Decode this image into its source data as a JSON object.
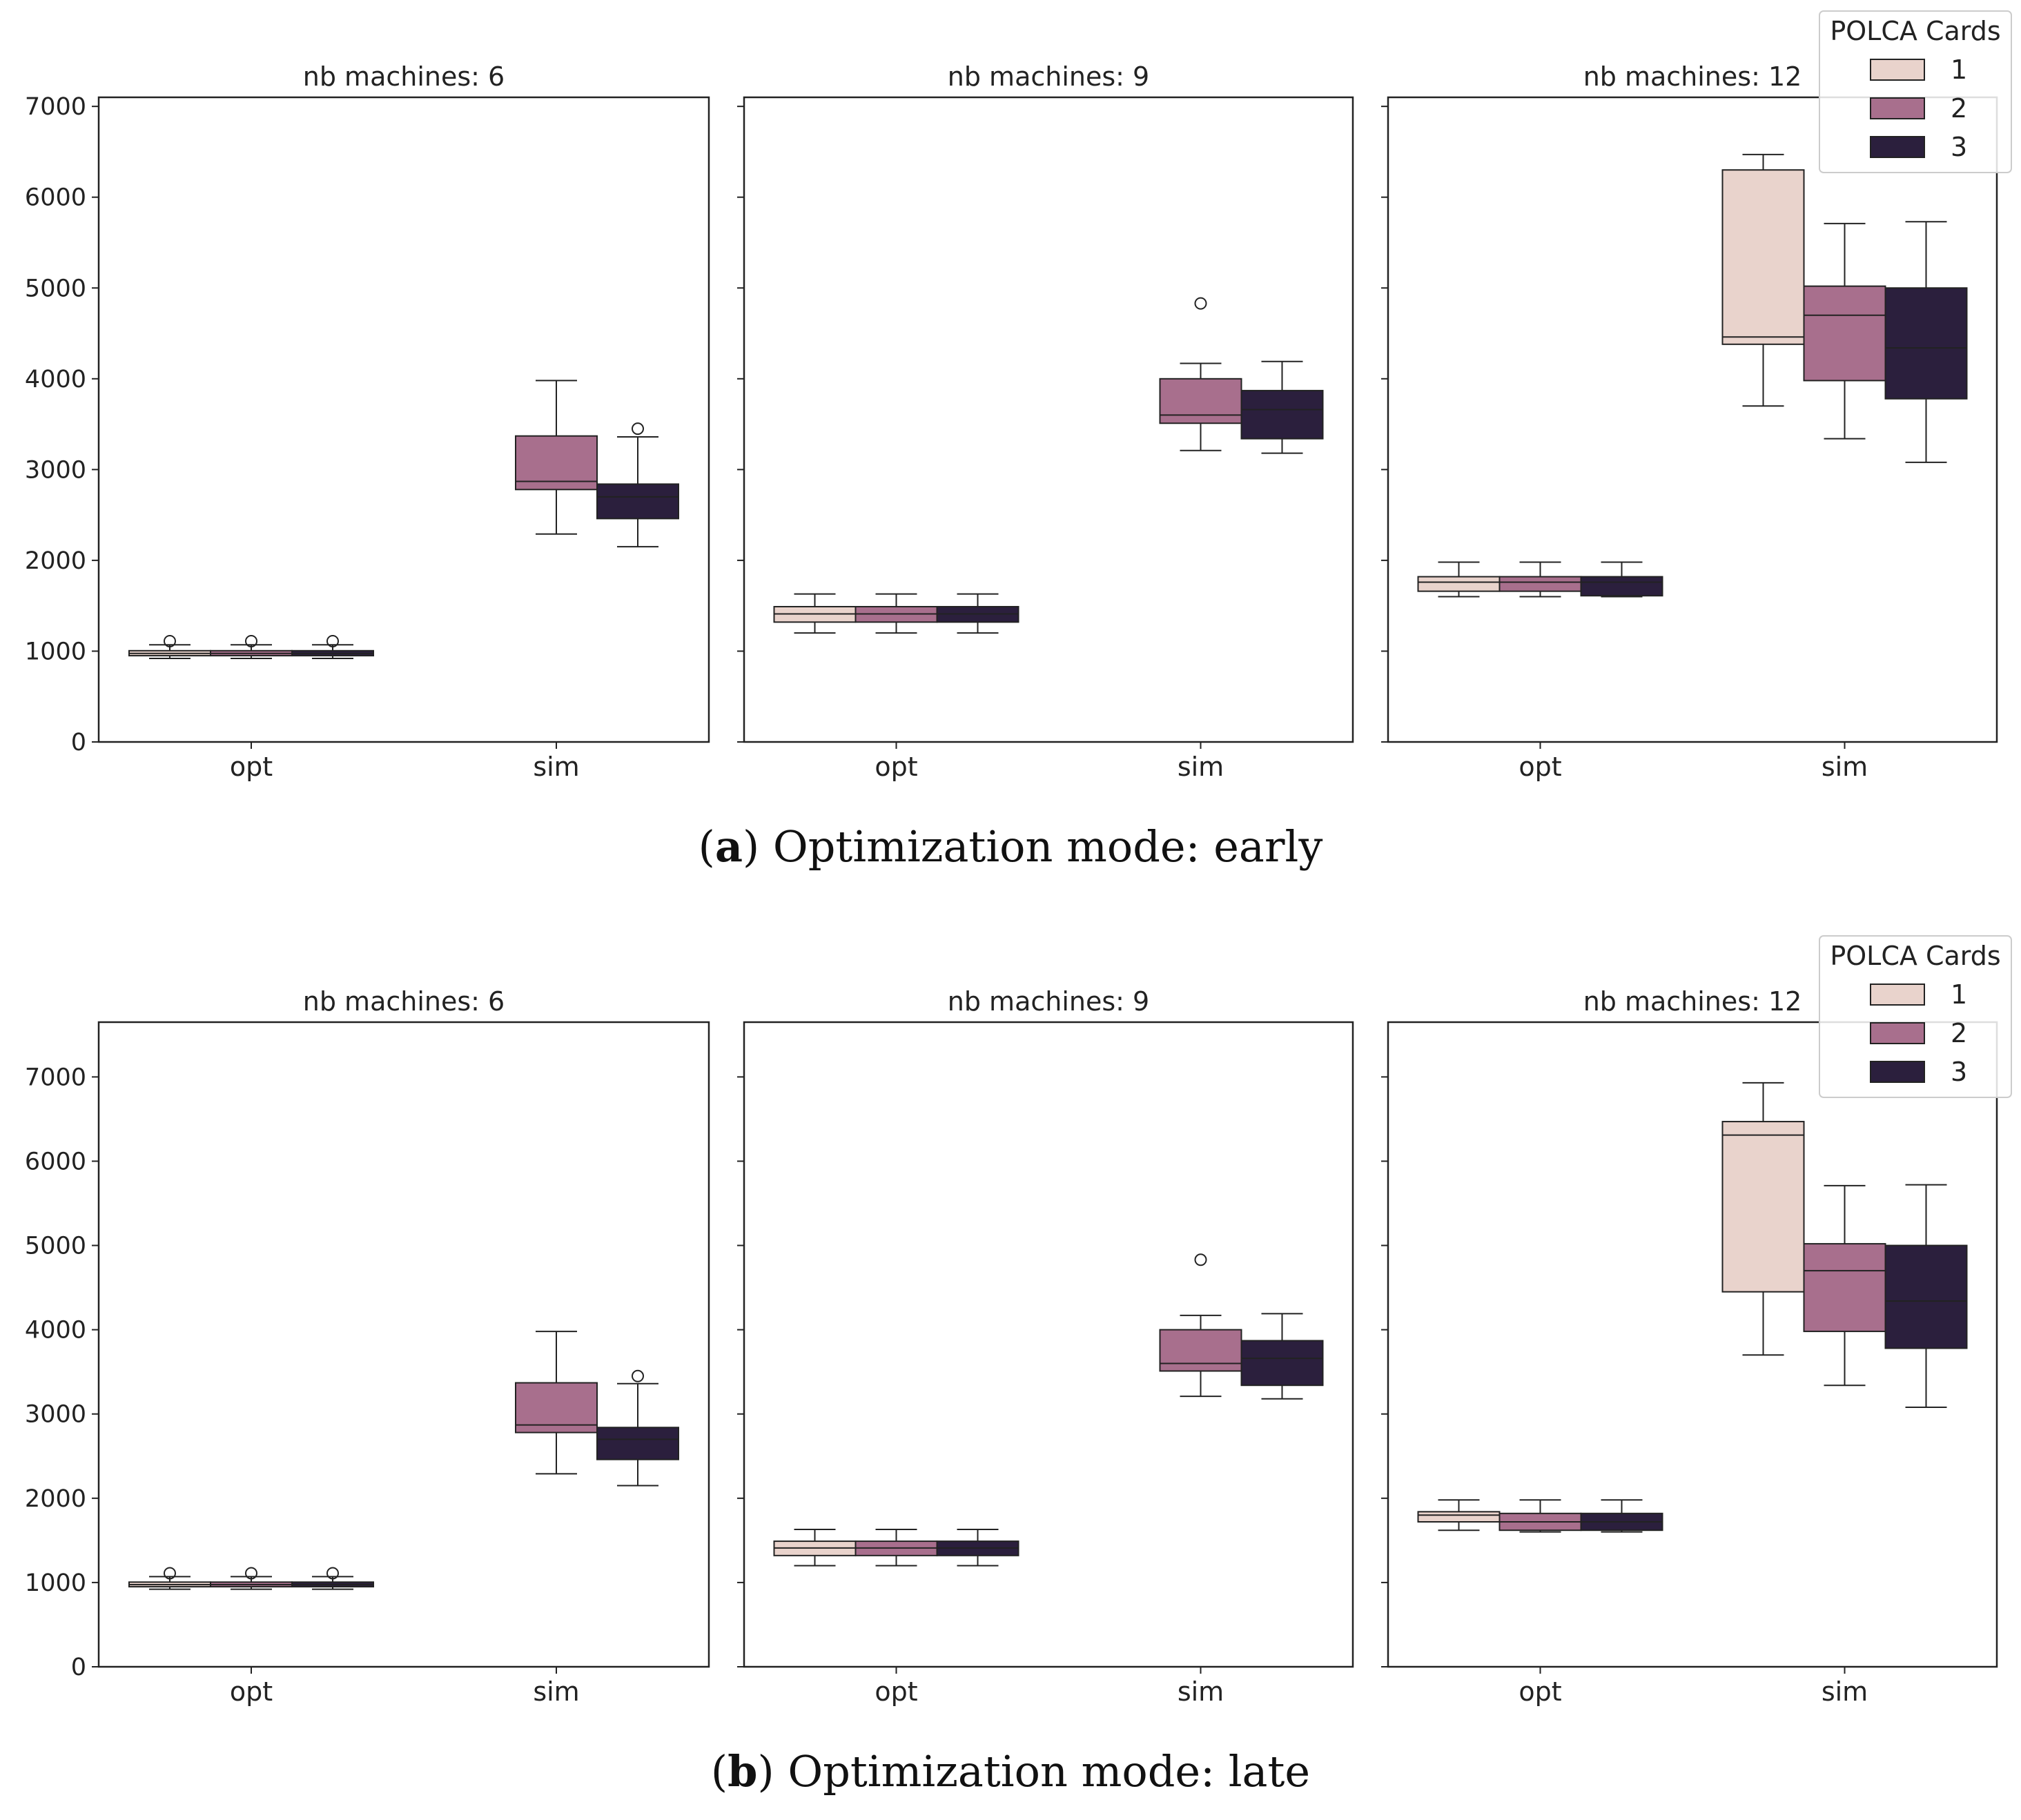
{
  "colors": {
    "1": "#e9d3cc",
    "2": "#a86f8d",
    "3": "#2b1f3d"
  },
  "legend": {
    "title": "POLCA Cards",
    "entries": [
      "1",
      "2",
      "3"
    ]
  },
  "figures": [
    {
      "caption_label": "a",
      "caption_text": "Optimization mode: early"
    },
    {
      "caption_label": "b",
      "caption_text": "Optimization mode: late"
    }
  ],
  "chart_data": [
    {
      "type": "box",
      "figure": "a",
      "ylim": [
        0,
        7100
      ],
      "yticks": [
        0,
        1000,
        2000,
        3000,
        4000,
        5000,
        6000,
        7000
      ],
      "categories": [
        "opt",
        "sim"
      ],
      "hue": [
        "1",
        "2",
        "3"
      ],
      "panels": [
        {
          "title": "nb machines: 6",
          "boxes": [
            {
              "category": "opt",
              "hue": "1",
              "whislo": 920,
              "q1": 950,
              "median": 975,
              "q3": 1005,
              "whishi": 1070,
              "fliers": [
                1110
              ]
            },
            {
              "category": "opt",
              "hue": "2",
              "whislo": 920,
              "q1": 950,
              "median": 975,
              "q3": 1005,
              "whishi": 1070,
              "fliers": [
                1110
              ]
            },
            {
              "category": "opt",
              "hue": "3",
              "whislo": 920,
              "q1": 950,
              "median": 975,
              "q3": 1005,
              "whishi": 1070,
              "fliers": [
                1110
              ]
            },
            {
              "category": "sim",
              "hue": "2",
              "whislo": 2290,
              "q1": 2780,
              "median": 2870,
              "q3": 3370,
              "whishi": 3980,
              "fliers": []
            },
            {
              "category": "sim",
              "hue": "3",
              "whislo": 2150,
              "q1": 2460,
              "median": 2700,
              "q3": 2840,
              "whishi": 3360,
              "fliers": [
                3450
              ]
            }
          ]
        },
        {
          "title": "nb machines: 9",
          "boxes": [
            {
              "category": "opt",
              "hue": "1",
              "whislo": 1200,
              "q1": 1320,
              "median": 1410,
              "q3": 1490,
              "whishi": 1630,
              "fliers": []
            },
            {
              "category": "opt",
              "hue": "2",
              "whislo": 1200,
              "q1": 1320,
              "median": 1410,
              "q3": 1490,
              "whishi": 1630,
              "fliers": []
            },
            {
              "category": "opt",
              "hue": "3",
              "whislo": 1200,
              "q1": 1320,
              "median": 1410,
              "q3": 1490,
              "whishi": 1630,
              "fliers": []
            },
            {
              "category": "sim",
              "hue": "2",
              "whislo": 3210,
              "q1": 3510,
              "median": 3600,
              "q3": 4000,
              "whishi": 4170,
              "fliers": [
                4830
              ]
            },
            {
              "category": "sim",
              "hue": "3",
              "whislo": 3180,
              "q1": 3340,
              "median": 3660,
              "q3": 3870,
              "whishi": 4190,
              "fliers": []
            }
          ]
        },
        {
          "title": "nb machines: 12",
          "boxes": [
            {
              "category": "opt",
              "hue": "1",
              "whislo": 1600,
              "q1": 1660,
              "median": 1760,
              "q3": 1820,
              "whishi": 1980,
              "fliers": []
            },
            {
              "category": "opt",
              "hue": "2",
              "whislo": 1600,
              "q1": 1660,
              "median": 1760,
              "q3": 1820,
              "whishi": 1980,
              "fliers": []
            },
            {
              "category": "opt",
              "hue": "3",
              "whislo": 1600,
              "q1": 1610,
              "median": 1760,
              "q3": 1820,
              "whishi": 1980,
              "fliers": []
            },
            {
              "category": "sim",
              "hue": "1",
              "whislo": 3700,
              "q1": 4380,
              "median": 4460,
              "q3": 6300,
              "whishi": 6470,
              "fliers": []
            },
            {
              "category": "sim",
              "hue": "2",
              "whislo": 3340,
              "q1": 3980,
              "median": 4700,
              "q3": 5020,
              "whishi": 5710,
              "fliers": []
            },
            {
              "category": "sim",
              "hue": "3",
              "whislo": 3080,
              "q1": 3780,
              "median": 4340,
              "q3": 5000,
              "whishi": 5730,
              "fliers": []
            }
          ]
        }
      ]
    },
    {
      "type": "box",
      "figure": "b",
      "ylim": [
        0,
        7650
      ],
      "yticks": [
        0,
        1000,
        2000,
        3000,
        4000,
        5000,
        6000,
        7000
      ],
      "categories": [
        "opt",
        "sim"
      ],
      "hue": [
        "1",
        "2",
        "3"
      ],
      "panels": [
        {
          "title": "nb machines: 6",
          "boxes": [
            {
              "category": "opt",
              "hue": "1",
              "whislo": 920,
              "q1": 950,
              "median": 975,
              "q3": 1005,
              "whishi": 1070,
              "fliers": [
                1110
              ]
            },
            {
              "category": "opt",
              "hue": "2",
              "whislo": 920,
              "q1": 950,
              "median": 975,
              "q3": 1005,
              "whishi": 1070,
              "fliers": [
                1110
              ]
            },
            {
              "category": "opt",
              "hue": "3",
              "whislo": 920,
              "q1": 950,
              "median": 975,
              "q3": 1005,
              "whishi": 1070,
              "fliers": [
                1110
              ]
            },
            {
              "category": "sim",
              "hue": "2",
              "whislo": 2290,
              "q1": 2780,
              "median": 2870,
              "q3": 3370,
              "whishi": 3980,
              "fliers": []
            },
            {
              "category": "sim",
              "hue": "3",
              "whislo": 2150,
              "q1": 2460,
              "median": 2700,
              "q3": 2840,
              "whishi": 3360,
              "fliers": [
                3450
              ]
            }
          ]
        },
        {
          "title": "nb machines: 9",
          "boxes": [
            {
              "category": "opt",
              "hue": "1",
              "whislo": 1200,
              "q1": 1320,
              "median": 1410,
              "q3": 1490,
              "whishi": 1630,
              "fliers": []
            },
            {
              "category": "opt",
              "hue": "2",
              "whislo": 1200,
              "q1": 1320,
              "median": 1410,
              "q3": 1490,
              "whishi": 1630,
              "fliers": []
            },
            {
              "category": "opt",
              "hue": "3",
              "whislo": 1200,
              "q1": 1320,
              "median": 1410,
              "q3": 1490,
              "whishi": 1630,
              "fliers": []
            },
            {
              "category": "sim",
              "hue": "2",
              "whislo": 3210,
              "q1": 3510,
              "median": 3600,
              "q3": 4000,
              "whishi": 4170,
              "fliers": [
                4830
              ]
            },
            {
              "category": "sim",
              "hue": "3",
              "whislo": 3180,
              "q1": 3340,
              "median": 3660,
              "q3": 3870,
              "whishi": 4190,
              "fliers": []
            }
          ]
        },
        {
          "title": "nb machines: 12",
          "boxes": [
            {
              "category": "opt",
              "hue": "1",
              "whislo": 1620,
              "q1": 1720,
              "median": 1800,
              "q3": 1840,
              "whishi": 1980,
              "fliers": []
            },
            {
              "category": "opt",
              "hue": "2",
              "whislo": 1600,
              "q1": 1620,
              "median": 1720,
              "q3": 1820,
              "whishi": 1980,
              "fliers": []
            },
            {
              "category": "opt",
              "hue": "3",
              "whislo": 1600,
              "q1": 1620,
              "median": 1720,
              "q3": 1820,
              "whishi": 1980,
              "fliers": []
            },
            {
              "category": "sim",
              "hue": "1",
              "whislo": 3700,
              "q1": 4450,
              "median": 6310,
              "q3": 6470,
              "whishi": 6930,
              "fliers": []
            },
            {
              "category": "sim",
              "hue": "2",
              "whislo": 3340,
              "q1": 3980,
              "median": 4700,
              "q3": 5020,
              "whishi": 5710,
              "fliers": []
            },
            {
              "category": "sim",
              "hue": "3",
              "whislo": 3080,
              "q1": 3780,
              "median": 4340,
              "q3": 5000,
              "whishi": 5720,
              "fliers": []
            }
          ]
        }
      ]
    }
  ]
}
